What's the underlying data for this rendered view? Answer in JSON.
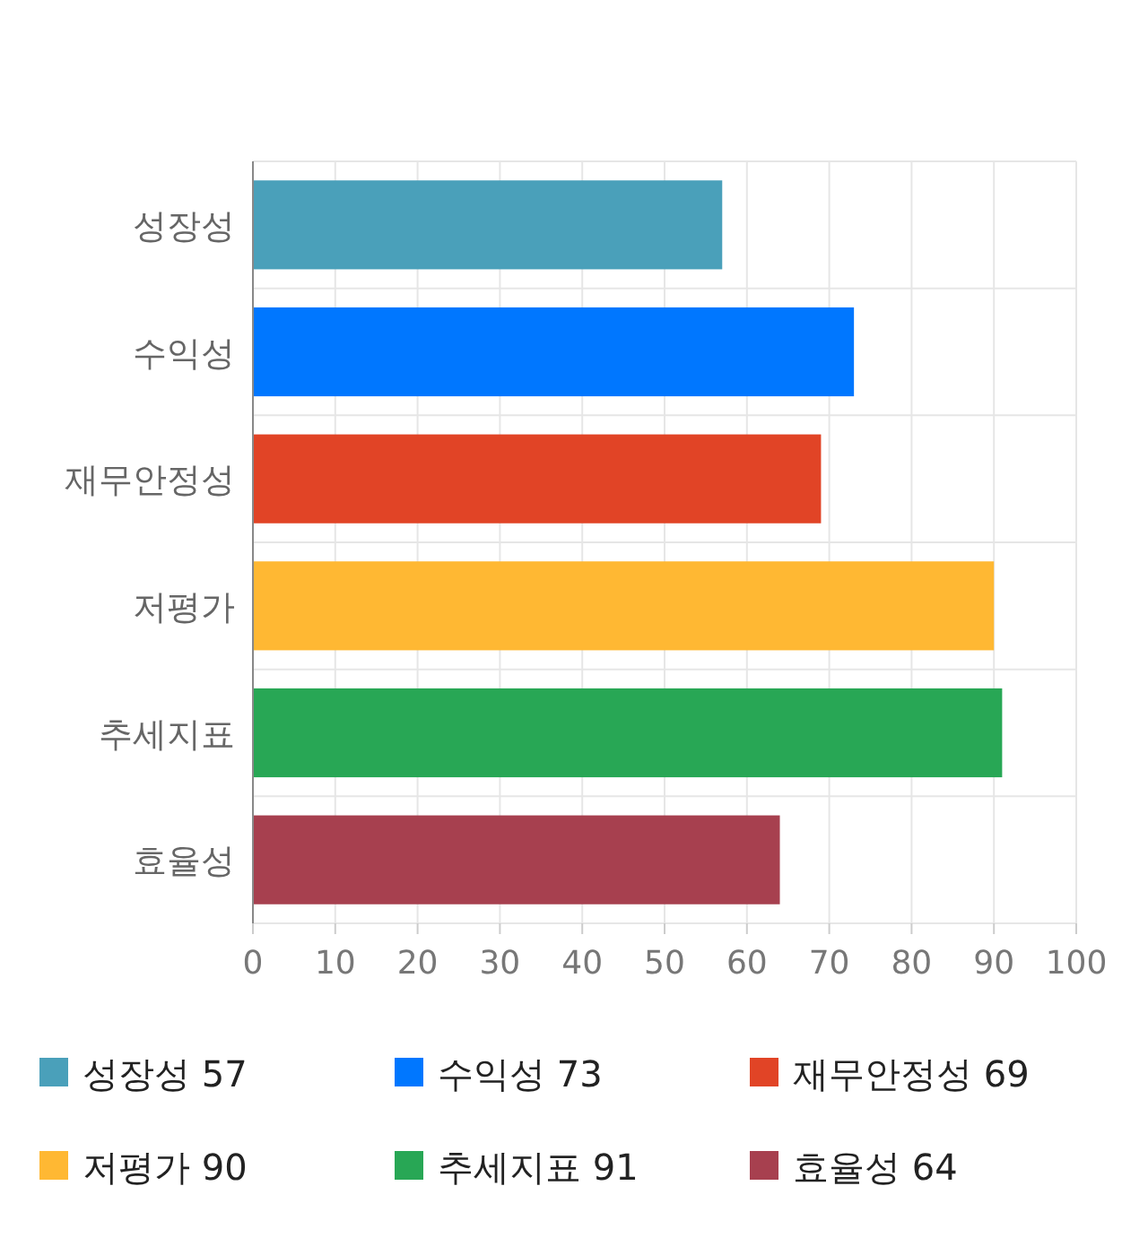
{
  "chart_data": {
    "type": "bar",
    "orientation": "horizontal",
    "stacked": true,
    "categories": [
      "성장성",
      "수익성",
      "재무안정성",
      "저평가",
      "추세지표",
      "효율성"
    ],
    "series": [
      {
        "name": "성장성 57",
        "color": "#4aa0ba",
        "values": [
          57,
          null,
          null,
          null,
          null,
          null
        ]
      },
      {
        "name": "수익성 73",
        "color": "#0077ff",
        "values": [
          null,
          73,
          null,
          null,
          null,
          null
        ]
      },
      {
        "name": "재무안정성 69",
        "color": "#e14426",
        "values": [
          null,
          null,
          69,
          null,
          null,
          null
        ]
      },
      {
        "name": "저평가 90",
        "color": "#ffb833",
        "values": [
          null,
          null,
          null,
          90,
          null,
          null
        ]
      },
      {
        "name": "추세지표 91",
        "color": "#28a755",
        "values": [
          null,
          null,
          null,
          null,
          91,
          null
        ]
      },
      {
        "name": "효율성 64",
        "color": "#a7404f",
        "values": [
          null,
          null,
          null,
          null,
          null,
          64
        ]
      }
    ],
    "xlim": [
      0,
      100
    ],
    "xticks": [
      0,
      10,
      20,
      30,
      40,
      50,
      60,
      70,
      80,
      90,
      100
    ],
    "grid": true,
    "legend": "bottom"
  }
}
